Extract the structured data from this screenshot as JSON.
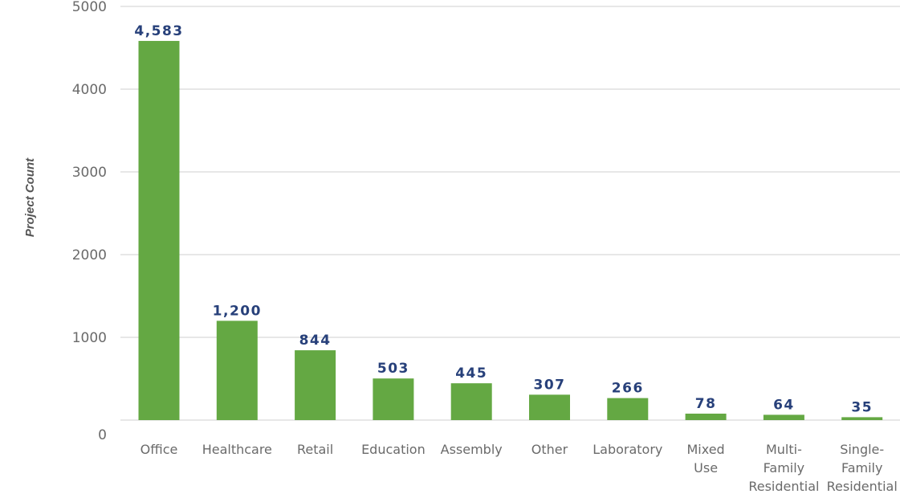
{
  "chart_data": {
    "type": "bar",
    "title": "",
    "xlabel": "",
    "ylabel": "Project Count",
    "categories": [
      [
        "Office"
      ],
      [
        "Healthcare"
      ],
      [
        "Retail"
      ],
      [
        "Education"
      ],
      [
        "Assembly"
      ],
      [
        "Other"
      ],
      [
        "Laboratory"
      ],
      [
        "Mixed",
        "Use"
      ],
      [
        "Multi-",
        "Family",
        "Residential"
      ],
      [
        "Single-",
        "Family",
        "Residential"
      ]
    ],
    "values": [
      4583,
      1200,
      844,
      503,
      445,
      307,
      266,
      78,
      64,
      35
    ],
    "data_labels": [
      "4,583",
      "1,200",
      "844",
      "503",
      "445",
      "307",
      "266",
      "78",
      "64",
      "35"
    ],
    "yticks": [
      0,
      1000,
      2000,
      3000,
      4000,
      5000
    ],
    "ylim": [
      0,
      5000
    ],
    "grid": true,
    "legend": "none",
    "colors": {
      "bar": "#64a843",
      "data_label": "#27407a",
      "tick_text": "#6a6a6a",
      "axis_title": "#555555",
      "grid": "#cfcfcf"
    }
  }
}
